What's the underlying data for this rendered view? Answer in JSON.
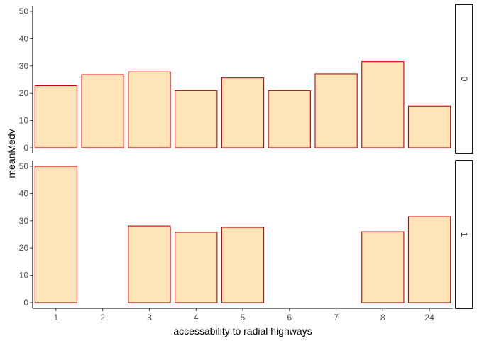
{
  "chart_data": {
    "type": "bar",
    "xlabel": "accessability to radial highways",
    "ylabel": "meanMedv",
    "categories": [
      "1",
      "2",
      "3",
      "4",
      "5",
      "6",
      "7",
      "8",
      "24"
    ],
    "ylim": [
      0,
      50
    ],
    "yticks": [
      "0",
      "10",
      "20",
      "30",
      "40",
      "50"
    ],
    "grid": false,
    "facet_variable_side": "right",
    "bar_fill": "#FFE4B8",
    "bar_stroke": "#CC0000",
    "panels": [
      {
        "strip": "0",
        "values": [
          22.8,
          26.8,
          27.8,
          21.0,
          25.6,
          21.0,
          27.1,
          31.6,
          15.3
        ]
      },
      {
        "strip": "1",
        "values": [
          50.0,
          null,
          28.1,
          25.8,
          27.6,
          null,
          null,
          26.0,
          31.5
        ]
      }
    ]
  }
}
